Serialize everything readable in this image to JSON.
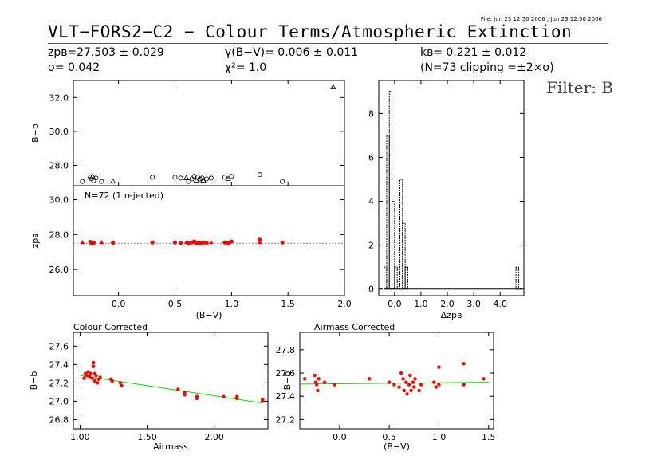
{
  "header": {
    "title": "VLT−FORS2−C2 − Colour Terms/Atmospheric Extinction",
    "file_info": "File: Jun 23 12:50 2006 ; Jun 23 12:50 2006",
    "filter_label": "Filter: B"
  },
  "stats": {
    "zp": "zpʙ=27.503 ± 0.029",
    "sigma": "σ= 0.042",
    "gamma": "γ(B−V)= 0.006 ± 0.011",
    "chi2": "χ²= 1.0",
    "k": "kʙ= 0.221 ± 0.012",
    "clipping": "(N=73 clipping =±2×σ)"
  },
  "colors": {
    "points": "#ff0000",
    "fit_line": "#00dd00",
    "frame": "#000000"
  },
  "chart_data": [
    {
      "id": "raw",
      "type": "scatter",
      "ylabel": "B−b",
      "ylim": [
        26.8,
        33.0
      ],
      "xlim": [
        -0.4,
        2.0
      ],
      "yticks": [
        28.0,
        30.0,
        32.0
      ],
      "points": [
        [
          -0.32,
          27.05
        ],
        [
          -0.25,
          27.3
        ],
        [
          -0.24,
          27.2
        ],
        [
          -0.23,
          27.35
        ],
        [
          -0.22,
          27.1
        ],
        [
          -0.2,
          27.25
        ],
        [
          -0.15,
          27.05
        ],
        [
          -0.05,
          27.05
        ],
        [
          0.3,
          27.3
        ],
        [
          0.5,
          27.3
        ],
        [
          0.55,
          27.25
        ],
        [
          0.6,
          27.25
        ],
        [
          0.62,
          27.05
        ],
        [
          0.65,
          27.2
        ],
        [
          0.67,
          27.35
        ],
        [
          0.69,
          27.1
        ],
        [
          0.7,
          27.3
        ],
        [
          0.72,
          27.2
        ],
        [
          0.74,
          27.25
        ],
        [
          0.75,
          27.1
        ],
        [
          0.78,
          27.2
        ],
        [
          0.82,
          27.25
        ],
        [
          0.94,
          27.3
        ],
        [
          0.97,
          27.2
        ],
        [
          1.0,
          27.35
        ],
        [
          1.25,
          27.45
        ],
        [
          1.45,
          27.05
        ],
        [
          1.9,
          32.6
        ]
      ]
    },
    {
      "id": "zp",
      "type": "scatter",
      "annotation": "N=72 (1 rejected)",
      "ylabel": "zpʙ",
      "xlabel": "(B−V)",
      "xlim": [
        -0.4,
        2.0
      ],
      "ylim": [
        24.5,
        30.8
      ],
      "xticks": [
        0.0,
        0.5,
        1.0,
        1.5,
        2.0
      ],
      "yticks": [
        26.0,
        28.0,
        30.0
      ],
      "reference_line": 27.503,
      "points": [
        [
          -0.32,
          27.55
        ],
        [
          -0.25,
          27.58
        ],
        [
          -0.24,
          27.5
        ],
        [
          -0.23,
          27.55
        ],
        [
          -0.22,
          27.52
        ],
        [
          -0.15,
          27.55
        ],
        [
          -0.05,
          27.53
        ],
        [
          0.3,
          27.55
        ],
        [
          0.5,
          27.55
        ],
        [
          0.55,
          27.52
        ],
        [
          0.6,
          27.55
        ],
        [
          0.62,
          27.5
        ],
        [
          0.65,
          27.55
        ],
        [
          0.67,
          27.6
        ],
        [
          0.69,
          27.5
        ],
        [
          0.7,
          27.55
        ],
        [
          0.72,
          27.5
        ],
        [
          0.74,
          27.52
        ],
        [
          0.75,
          27.55
        ],
        [
          0.78,
          27.52
        ],
        [
          0.82,
          27.55
        ],
        [
          0.94,
          27.55
        ],
        [
          0.97,
          27.5
        ],
        [
          1.0,
          27.6
        ],
        [
          1.25,
          27.7
        ],
        [
          1.25,
          27.55
        ],
        [
          1.45,
          27.55
        ]
      ]
    },
    {
      "id": "histogram",
      "type": "bar",
      "xlabel": "Δzpʙ",
      "xlim": [
        -0.6,
        4.9
      ],
      "ylim": [
        -0.3,
        9.5
      ],
      "xticks": [
        0.0,
        1.0,
        2.0,
        3.0,
        4.0
      ],
      "yticks": [
        0,
        2,
        4,
        6,
        8
      ],
      "bins": [
        [
          -0.4,
          -0.3,
          1
        ],
        [
          -0.3,
          -0.2,
          7
        ],
        [
          -0.2,
          -0.1,
          9
        ],
        [
          -0.1,
          0.0,
          4
        ],
        [
          0.0,
          0.1,
          1
        ],
        [
          0.2,
          0.3,
          5
        ],
        [
          0.3,
          0.4,
          3
        ],
        [
          0.4,
          0.5,
          1
        ],
        [
          4.6,
          4.7,
          1
        ]
      ]
    },
    {
      "id": "colour_corrected",
      "type": "scatter",
      "title": "Colour Corrected",
      "ylabel": "B−b",
      "xlabel": "Airmass",
      "xlim": [
        0.95,
        2.4
      ],
      "ylim": [
        26.7,
        27.75
      ],
      "xticks": [
        1.0,
        1.5,
        2.0
      ],
      "xtick_labels": [
        "1.00",
        "1.50",
        "2.00"
      ],
      "yticks": [
        26.8,
        27.0,
        27.2,
        27.4,
        27.6
      ],
      "fit_line": [
        [
          1.0,
          27.28
        ],
        [
          2.36,
          26.98
        ]
      ],
      "points": [
        [
          1.03,
          27.25
        ],
        [
          1.04,
          27.3
        ],
        [
          1.05,
          27.28
        ],
        [
          1.06,
          27.32
        ],
        [
          1.07,
          27.27
        ],
        [
          1.08,
          27.3
        ],
        [
          1.09,
          27.25
        ],
        [
          1.1,
          27.42
        ],
        [
          1.1,
          27.38
        ],
        [
          1.11,
          27.3
        ],
        [
          1.11,
          27.22
        ],
        [
          1.12,
          27.28
        ],
        [
          1.13,
          27.2
        ],
        [
          1.14,
          27.24
        ],
        [
          1.15,
          27.26
        ],
        [
          1.23,
          27.24
        ],
        [
          1.24,
          27.22
        ],
        [
          1.3,
          27.2
        ],
        [
          1.31,
          27.17
        ],
        [
          1.73,
          27.13
        ],
        [
          1.78,
          27.1
        ],
        [
          1.78,
          27.07
        ],
        [
          1.87,
          27.05
        ],
        [
          1.87,
          27.03
        ],
        [
          2.07,
          27.05
        ],
        [
          2.17,
          27.05
        ],
        [
          2.17,
          27.03
        ],
        [
          2.36,
          27.02
        ],
        [
          2.36,
          27.0
        ]
      ]
    },
    {
      "id": "airmass_corrected",
      "type": "scatter",
      "title": "Airmass Corrected",
      "ylabel": "B−b",
      "xlabel": "(B−V)",
      "xlim": [
        -0.4,
        1.55
      ],
      "ylim": [
        27.12,
        27.95
      ],
      "xticks": [
        0.0,
        0.5,
        1.0,
        1.5
      ],
      "yticks": [
        27.2,
        27.4,
        27.6,
        27.8
      ],
      "fit_line": [
        [
          -0.4,
          27.505
        ],
        [
          1.5,
          27.52
        ]
      ],
      "points": [
        [
          -0.35,
          27.55
        ],
        [
          -0.25,
          27.58
        ],
        [
          -0.24,
          27.52
        ],
        [
          -0.23,
          27.5
        ],
        [
          -0.22,
          27.45
        ],
        [
          -0.21,
          27.55
        ],
        [
          -0.15,
          27.52
        ],
        [
          -0.05,
          27.5
        ],
        [
          0.3,
          27.55
        ],
        [
          0.5,
          27.52
        ],
        [
          0.55,
          27.5
        ],
        [
          0.6,
          27.48
        ],
        [
          0.62,
          27.6
        ],
        [
          0.64,
          27.55
        ],
        [
          0.65,
          27.45
        ],
        [
          0.67,
          27.52
        ],
        [
          0.68,
          27.42
        ],
        [
          0.7,
          27.5
        ],
        [
          0.71,
          27.58
        ],
        [
          0.72,
          27.45
        ],
        [
          0.74,
          27.52
        ],
        [
          0.75,
          27.48
        ],
        [
          0.76,
          27.55
        ],
        [
          0.8,
          27.45
        ],
        [
          0.82,
          27.5
        ],
        [
          0.95,
          27.52
        ],
        [
          0.97,
          27.48
        ],
        [
          1.0,
          27.5
        ],
        [
          1.0,
          27.65
        ],
        [
          1.25,
          27.68
        ],
        [
          1.25,
          27.5
        ],
        [
          1.45,
          27.55
        ]
      ]
    }
  ]
}
